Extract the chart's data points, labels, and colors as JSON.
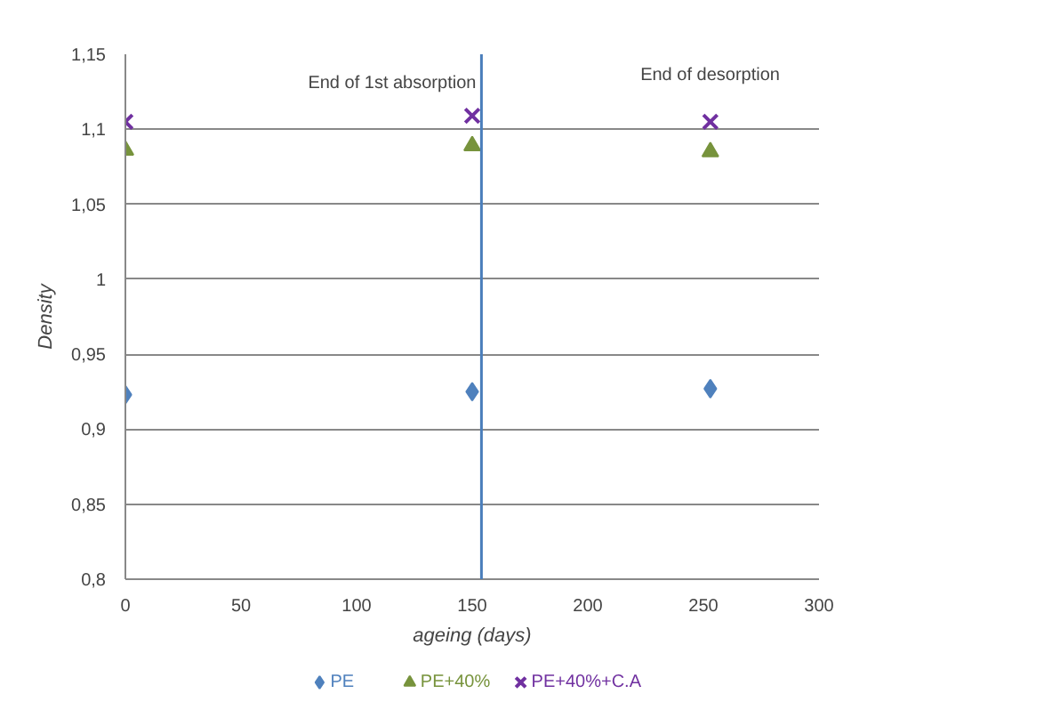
{
  "chart_data": {
    "type": "scatter",
    "xlabel": "ageing (days)",
    "ylabel": "Density",
    "x": [
      0,
      150,
      253
    ],
    "series": [
      {
        "name": "PE",
        "color": "#4f81bd",
        "marker": "diamond",
        "values": [
          0.923,
          0.925,
          0.927
        ]
      },
      {
        "name": "PE+40%",
        "color": "#77933c",
        "marker": "triangle",
        "values": [
          1.086,
          1.089,
          1.085
        ]
      },
      {
        "name": "PE+40%+C.A",
        "color": "#7030a0",
        "marker": "cross",
        "values": [
          1.105,
          1.109,
          1.105
        ]
      }
    ],
    "xlim": [
      0,
      300
    ],
    "xticks": [
      0,
      50,
      100,
      150,
      200,
      250,
      300
    ],
    "ylim": [
      0.8,
      1.15
    ],
    "yticks": [
      {
        "value": 0.8,
        "label": "0,8"
      },
      {
        "value": 0.85,
        "label": "0,85"
      },
      {
        "value": 0.9,
        "label": "0,9"
      },
      {
        "value": 0.95,
        "label": "0,95"
      },
      {
        "value": 1.0,
        "label": "1"
      },
      {
        "value": 1.05,
        "label": "1,05"
      },
      {
        "value": 1.1,
        "label": "1,1"
      },
      {
        "value": 1.15,
        "label": "1,15"
      }
    ],
    "ref_lines": [
      {
        "axis": "x",
        "value": 154,
        "label": "End of 1st absorption",
        "color": "#4a7ebb"
      }
    ],
    "annotations": [
      "End of desorption"
    ],
    "grid": "y",
    "legend": "bottom"
  }
}
